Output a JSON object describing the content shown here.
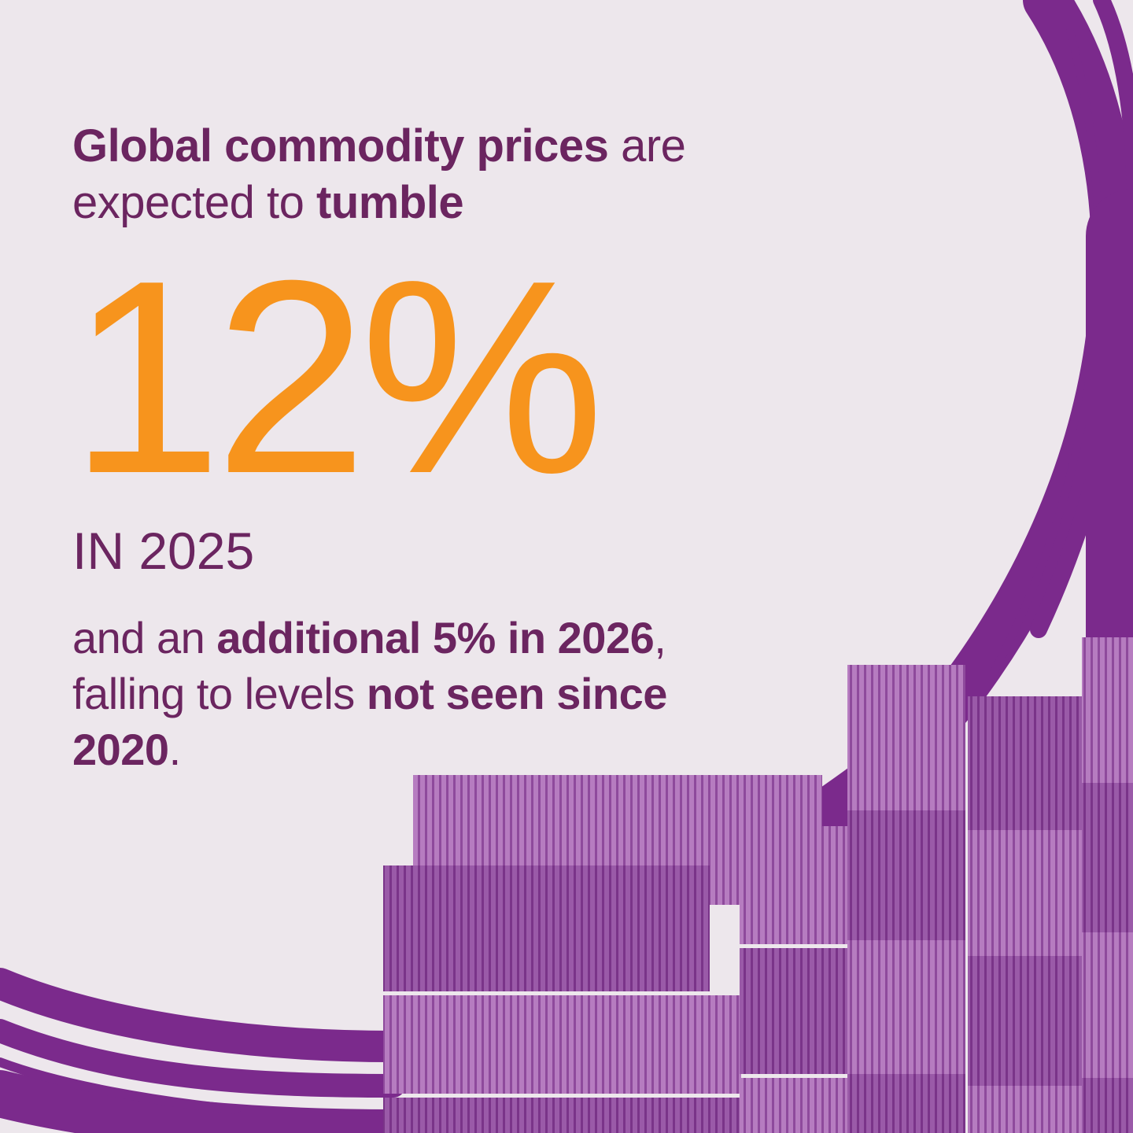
{
  "headline": {
    "part1_bold": "Global commodity prices",
    "part2": " are expected to ",
    "part3_bold": "tumble"
  },
  "stat": {
    "value": "12%",
    "period": "IN 2025"
  },
  "detail": {
    "part1": "and an ",
    "part2_bold": "additional 5% in 2026",
    "part3": ", falling to levels ",
    "part4_bold": "not seen since 2020",
    "part5": "."
  },
  "colors": {
    "background": "#ede7ec",
    "text_purple": "#6b2560",
    "accent_orange": "#f7941d",
    "brush_purple": "#7b2a8c"
  },
  "image": "shipping-containers-stack"
}
